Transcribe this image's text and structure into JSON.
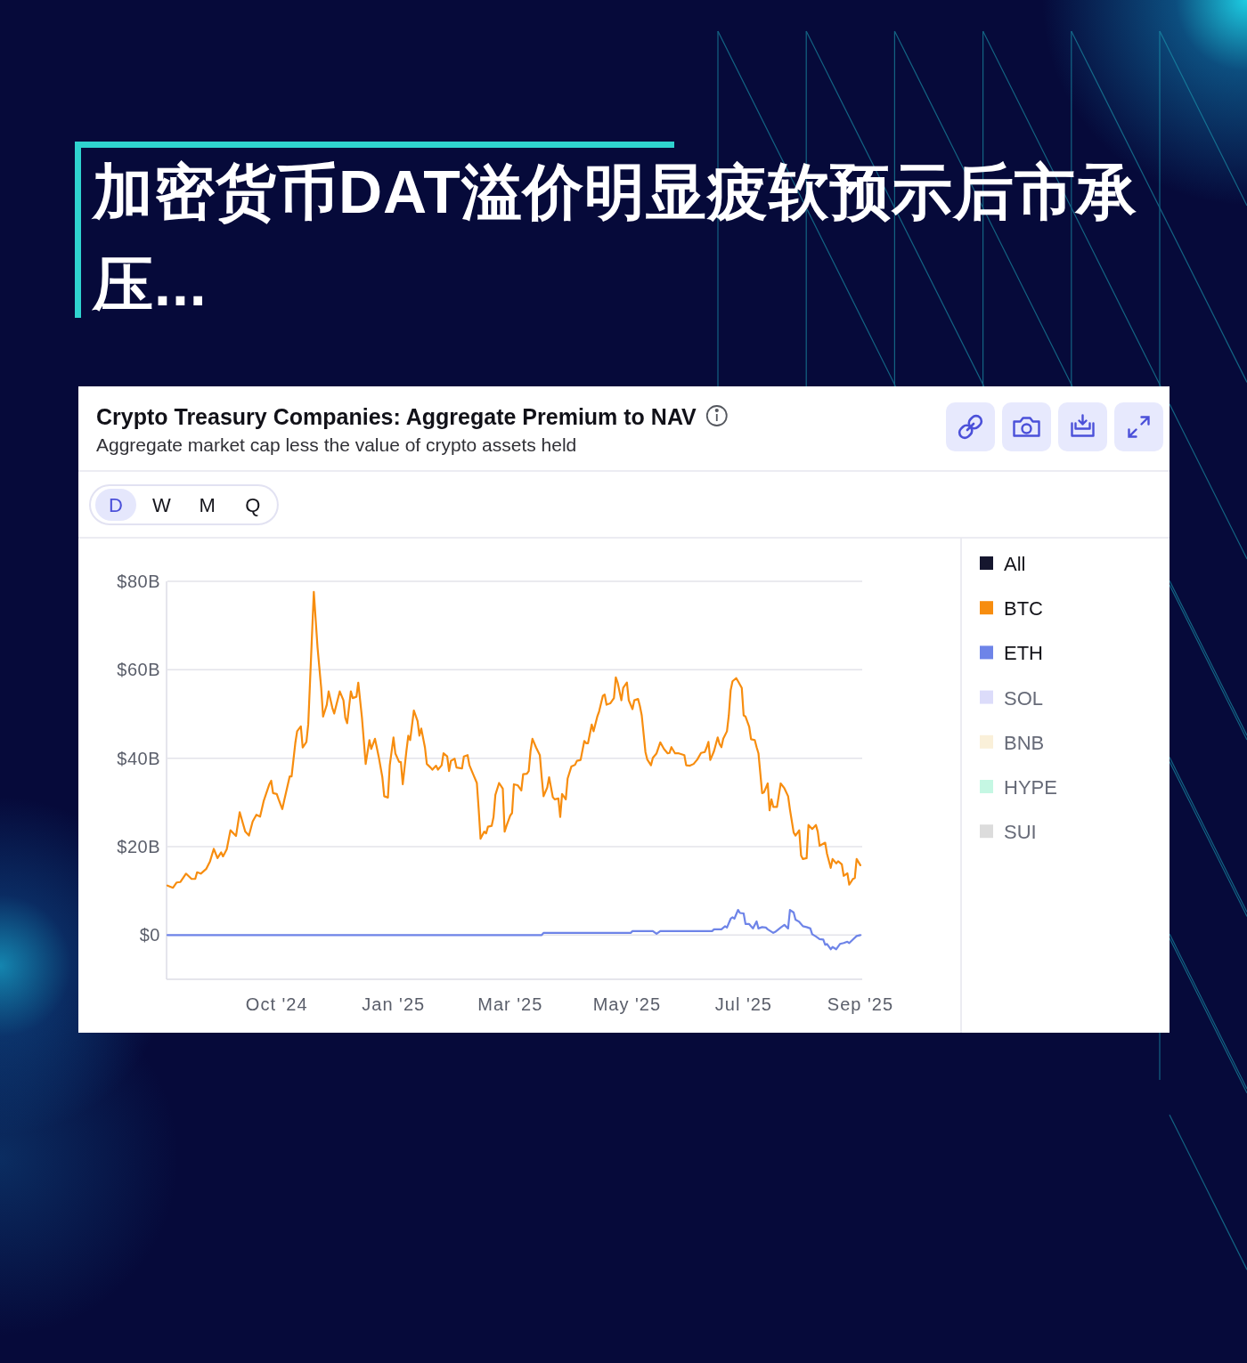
{
  "chart_data": {
    "type": "line",
    "title": "加密货币DAT溢价明显疲软预示后市承压...",
    "subtitle": "Crypto Treasury Companies: Aggregate Premium to NAV",
    "annotations": [
      "Aggregate market cap less the value of crypto assets held",
      "D",
      "W",
      "M",
      "Q"
    ],
    "x": [
      "2024-09-01",
      "2024-09-04",
      "2024-09-06",
      "2024-09-08",
      "2024-09-11",
      "2024-09-14",
      "2024-09-16",
      "2024-09-17",
      "2024-09-19",
      "2024-09-22",
      "2024-09-24",
      "2024-09-26",
      "2024-09-28",
      "2024-09-30",
      "2024-10-01",
      "2024-10-03",
      "2024-10-05",
      "2024-10-08",
      "2024-10-10",
      "2024-10-13",
      "2024-10-15",
      "2024-10-17",
      "2024-10-19",
      "2024-10-21",
      "2024-10-23",
      "2024-10-26",
      "2024-10-27",
      "2024-10-28",
      "2024-10-30",
      "2024-10-31",
      "2024-11-02",
      "2024-11-03",
      "2024-11-06",
      "2024-11-07",
      "2024-11-09",
      "2024-11-10",
      "2024-11-12",
      "2024-11-13",
      "2024-11-15",
      "2024-11-16",
      "2024-11-19",
      "2024-11-21",
      "2024-11-23",
      "2024-11-24",
      "2024-11-26",
      "2024-11-27",
      "2024-11-29",
      "2024-11-30",
      "2024-12-03",
      "2024-12-05",
      "2024-12-06",
      "2024-12-07",
      "2024-12-09",
      "2024-12-10",
      "2024-12-12",
      "2024-12-13",
      "2024-12-15",
      "2024-12-17",
      "2024-12-19",
      "2024-12-20",
      "2024-12-22",
      "2024-12-24",
      "2024-12-26",
      "2024-12-27",
      "2024-12-29",
      "2024-12-30",
      "2025-01-01",
      "2025-01-02",
      "2025-01-04",
      "2025-01-05",
      "2025-01-06",
      "2025-01-08",
      "2025-01-09",
      "2025-01-10",
      "2025-01-12",
      "2025-01-14",
      "2025-01-15",
      "2025-01-16",
      "2025-01-18",
      "2025-01-19",
      "2025-01-21",
      "2025-01-22",
      "2025-01-24",
      "2025-01-25",
      "2025-01-27",
      "2025-01-28",
      "2025-01-30",
      "2025-01-31",
      "2025-02-01",
      "2025-02-03",
      "2025-02-04",
      "2025-02-07",
      "2025-02-08",
      "2025-02-10",
      "2025-02-11",
      "2025-02-13",
      "2025-02-15",
      "2025-02-16",
      "2025-02-17",
      "2025-02-19",
      "2025-02-20",
      "2025-02-21",
      "2025-02-23",
      "2025-02-24",
      "2025-02-25",
      "2025-02-27",
      "2025-03-01",
      "2025-03-02",
      "2025-03-03",
      "2025-03-05",
      "2025-03-06",
      "2025-03-07",
      "2025-03-09",
      "2025-03-11",
      "2025-03-12",
      "2025-03-14",
      "2025-03-15",
      "2025-03-16",
      "2025-03-17",
      "2025-03-19",
      "2025-03-21",
      "2025-03-22",
      "2025-03-23",
      "2025-03-25",
      "2025-03-26",
      "2025-03-28",
      "2025-03-29",
      "2025-03-31",
      "2025-04-01",
      "2025-04-02",
      "2025-04-04",
      "2025-04-05",
      "2025-04-07",
      "2025-04-09",
      "2025-04-10",
      "2025-04-12",
      "2025-04-14",
      "2025-04-15",
      "2025-04-16",
      "2025-04-18",
      "2025-04-19",
      "2025-04-21",
      "2025-04-22",
      "2025-04-24",
      "2025-04-25",
      "2025-04-26",
      "2025-04-28",
      "2025-04-30",
      "2025-05-01",
      "2025-05-02",
      "2025-05-04",
      "2025-05-05",
      "2025-05-07",
      "2025-05-08",
      "2025-05-10",
      "2025-05-11",
      "2025-05-13",
      "2025-05-14",
      "2025-05-15",
      "2025-05-17",
      "2025-05-18",
      "2025-05-20",
      "2025-05-21",
      "2025-05-23",
      "2025-05-25",
      "2025-05-27",
      "2025-05-29",
      "2025-05-30",
      "2025-05-31",
      "2025-06-02",
      "2025-06-04",
      "2025-06-07",
      "2025-06-08",
      "2025-06-10",
      "2025-06-12",
      "2025-06-14",
      "2025-06-16",
      "2025-06-18",
      "2025-06-19",
      "2025-06-20",
      "2025-06-21",
      "2025-06-23",
      "2025-06-25",
      "2025-06-26",
      "2025-06-27",
      "2025-06-28",
      "2025-06-30",
      "2025-07-01",
      "2025-07-02",
      "2025-07-03",
      "2025-07-05",
      "2025-07-06",
      "2025-07-08",
      "2025-07-09",
      "2025-07-10",
      "2025-07-12",
      "2025-07-13",
      "2025-07-15",
      "2025-07-16",
      "2025-07-17",
      "2025-07-19",
      "2025-07-20",
      "2025-07-22",
      "2025-07-23",
      "2025-07-24",
      "2025-07-25",
      "2025-07-27",
      "2025-07-29",
      "2025-07-31",
      "2025-08-02",
      "2025-08-03",
      "2025-08-05",
      "2025-08-06",
      "2025-08-08",
      "2025-08-09",
      "2025-08-10",
      "2025-08-12",
      "2025-08-13",
      "2025-08-15",
      "2025-08-17",
      "2025-08-18",
      "2025-08-19",
      "2025-08-22",
      "2025-08-23",
      "2025-08-25",
      "2025-08-26",
      "2025-08-28",
      "2025-08-29",
      "2025-08-31",
      "2025-09-01",
      "2025-09-03",
      "2025-09-04",
      "2025-09-06",
      "2025-09-07",
      "2025-09-08",
      "2025-09-10"
    ],
    "series": [
      {
        "name": "All",
        "color": "#15162e",
        "values": [
          null,
          null,
          null,
          null,
          null,
          null,
          null,
          null,
          null,
          null,
          null,
          null,
          null,
          null,
          null,
          null,
          null,
          null,
          null,
          null,
          null,
          null,
          null,
          null,
          null,
          null,
          null,
          null,
          null,
          null,
          null,
          null,
          null,
          null,
          null,
          null,
          null,
          null,
          null,
          null,
          null,
          null,
          null,
          null,
          null,
          null,
          null,
          null,
          null,
          null,
          null,
          null,
          null,
          null,
          null,
          null,
          null,
          null,
          null,
          null,
          null,
          null,
          null,
          null,
          null,
          null,
          null,
          null,
          null,
          null,
          null,
          null,
          null,
          null,
          null,
          null,
          null,
          null,
          null,
          null,
          null,
          null,
          null,
          null,
          null,
          null,
          null,
          null,
          null,
          null,
          null,
          null,
          null,
          null,
          null,
          null,
          null,
          null,
          null,
          null,
          null,
          null,
          null,
          null,
          null,
          null,
          null,
          null,
          null,
          null,
          null,
          null,
          null,
          null,
          null,
          null,
          null,
          null,
          null,
          null,
          null,
          null,
          null,
          null,
          null,
          null,
          null,
          null,
          null,
          null,
          null,
          null,
          null,
          null,
          null,
          null,
          null,
          null,
          null,
          null,
          null,
          null,
          null,
          null,
          null,
          null,
          null,
          null,
          null,
          null,
          null,
          null,
          null,
          null,
          null,
          null,
          null,
          null,
          null,
          null,
          null,
          null,
          null,
          null,
          null,
          null,
          null,
          null,
          null,
          null,
          null,
          null,
          null,
          null,
          null,
          null,
          null,
          null,
          null,
          null,
          null,
          null,
          null,
          null,
          null,
          null,
          null,
          null,
          null,
          null,
          null,
          null,
          null,
          null,
          null,
          null,
          null,
          null,
          null,
          null,
          null,
          null,
          null,
          null,
          null,
          null,
          null,
          null,
          null,
          null,
          null,
          null,
          null,
          null,
          null,
          null,
          null,
          null,
          null,
          null,
          null,
          null,
          null,
          null,
          null,
          null,
          null,
          null,
          null,
          null,
          null,
          null,
          null,
          null,
          null,
          null
        ]
      },
      {
        "name": "BTC",
        "color": "#f78d0f",
        "values": [
          11.2,
          10.7,
          11.9,
          12.0,
          13.9,
          12.7,
          12.7,
          14.2,
          13.9,
          15.0,
          16.7,
          19.5,
          17.4,
          18.7,
          17.8,
          19.4,
          23.7,
          22.4,
          27.8,
          23.4,
          22.5,
          25.7,
          27.2,
          26.8,
          30.4,
          34.1,
          34.9,
          32.1,
          31.9,
          30.7,
          28.5,
          30.4,
          35.9,
          35.9,
          43.4,
          46.1,
          47.2,
          42.4,
          43.7,
          47.7,
          77.6,
          65.1,
          55.8,
          49.4,
          52.1,
          55.1,
          51.4,
          50.1,
          55.1,
          53.1,
          49.1,
          47.9,
          55.1,
          53.6,
          53.9,
          57.1,
          49.1,
          38.7,
          44.1,
          42.1,
          44.4,
          40.4,
          35.7,
          31.4,
          31.1,
          38.4,
          44.7,
          41.1,
          39.2,
          39.1,
          34.1,
          41.7,
          45.1,
          44.1,
          50.8,
          48.4,
          45.1,
          46.7,
          42.4,
          38.7,
          37.9,
          37.4,
          38.3,
          37.4,
          38.4,
          41.1,
          40.4,
          37.1,
          39.4,
          39.9,
          37.9,
          37.7,
          40.4,
          40.7,
          38.4,
          36.4,
          34.4,
          28.4,
          21.8,
          23.4,
          23.0,
          24.5,
          24.7,
          26.7,
          31.7,
          34.4,
          33.1,
          23.4,
          24.7,
          27.0,
          27.6,
          34.1,
          33.9,
          32.7,
          36.4,
          36.5,
          37.1,
          41.7,
          44.4,
          42.4,
          40.7,
          35.7,
          31.4,
          33.4,
          35.7,
          31.2,
          30.7,
          30.9,
          26.7,
          31.9,
          30.7,
          35.4,
          38.1,
          38.5,
          39.4,
          39.6,
          43.9,
          43.4,
          43.4,
          47.6,
          46.1,
          49.4,
          50.6,
          54.1,
          54.4,
          52.1,
          52.4,
          53.6,
          58.3,
          57.1,
          53.1,
          55.9,
          57.1,
          53.1,
          51.1,
          53.1,
          53.4,
          51.8,
          49.7,
          41.4,
          39.7,
          38.4,
          40.1,
          41.1,
          43.6,
          42.1,
          41.1,
          41.2,
          42.5,
          41.1,
          41.1,
          40.7,
          38.4,
          38.3,
          38.7,
          39.7,
          41.2,
          41.4,
          42.4,
          43.7,
          39.6,
          41.6,
          44.7,
          43.2,
          42.5,
          44.4,
          46.1,
          49.7,
          55.4,
          57.4,
          58.1,
          57.4,
          55.9,
          49.7,
          49.4,
          47.1,
          44.3,
          44.1,
          42.5,
          41.1,
          32.1,
          32.3,
          34.3,
          28.2,
          30.7,
          29.0,
          29.0,
          34.3,
          33.2,
          31.4,
          28.4,
          23.2,
          22.5,
          23.7,
          18.0,
          17.2,
          17.4,
          24.9,
          24.0,
          24.9,
          23.4,
          20.2,
          20.9,
          18.4,
          15.2,
          17.2,
          16.2,
          16.7,
          16.0,
          13.4,
          14.0,
          11.4,
          12.7,
          12.9,
          17.2,
          15.8
        ]
      },
      {
        "name": "ETH",
        "color": "#6e84e8",
        "x": [
          "2024-09-01",
          "2025-03-22",
          "2025-03-23",
          "2025-05-09",
          "2025-05-10",
          "2025-05-21",
          "2025-05-23",
          "2025-05-25",
          "2025-06-22",
          "2025-06-23",
          "2025-06-27",
          "2025-06-29",
          "2025-06-30",
          "2025-07-02",
          "2025-07-03",
          "2025-07-04",
          "2025-07-06",
          "2025-07-07",
          "2025-07-09",
          "2025-07-10",
          "2025-07-12",
          "2025-07-14",
          "2025-07-16",
          "2025-07-17",
          "2025-07-19",
          "2025-07-21",
          "2025-07-22",
          "2025-07-25",
          "2025-07-26",
          "2025-07-29",
          "2025-07-31",
          "2025-08-02",
          "2025-08-03",
          "2025-08-05",
          "2025-08-06",
          "2025-08-08",
          "2025-08-10",
          "2025-08-12",
          "2025-08-14",
          "2025-08-15",
          "2025-08-17",
          "2025-08-19",
          "2025-08-21",
          "2025-08-22",
          "2025-08-23",
          "2025-08-25",
          "2025-08-26",
          "2025-08-28",
          "2025-08-30",
          "2025-09-01",
          "2025-09-03",
          "2025-09-04",
          "2025-09-06",
          "2025-09-08",
          "2025-09-10"
        ],
        "values": [
          0,
          0,
          0.5,
          0.5,
          0.9,
          0.9,
          0.3,
          0.9,
          0.9,
          1.3,
          1.3,
          2.0,
          1.7,
          3.7,
          4.0,
          3.7,
          5.7,
          5.0,
          4.9,
          2.5,
          2.5,
          1.5,
          3.1,
          1.5,
          1.8,
          1.7,
          1.3,
          0.5,
          0.7,
          1.7,
          2.3,
          1.5,
          5.7,
          5.1,
          3.5,
          3.0,
          2.0,
          1.8,
          1.5,
          0.2,
          -0.3,
          -0.9,
          -1.0,
          -2.2,
          -2.0,
          -3.2,
          -2.7,
          -3.2,
          -2.0,
          -1.8,
          -1.5,
          -1.8,
          -1.0,
          -0.2,
          0
        ]
      },
      {
        "name": "SOL",
        "color": "#dcdcfa",
        "values": [
          null,
          null,
          null,
          null,
          null,
          null,
          null,
          null,
          null,
          null,
          null,
          null,
          null,
          null,
          null,
          null,
          null,
          null,
          null,
          null,
          null,
          null,
          null,
          null,
          null,
          null,
          null,
          null,
          null,
          null,
          null,
          null,
          null,
          null,
          null,
          null,
          null,
          null,
          null,
          null,
          null,
          null,
          null,
          null,
          null,
          null,
          null,
          null,
          null,
          null,
          null,
          null,
          null,
          null,
          null,
          null,
          null,
          null,
          null,
          null,
          null,
          null,
          null,
          null,
          null,
          null,
          null,
          null,
          null,
          null,
          null,
          null,
          null,
          null,
          null,
          null,
          null,
          null,
          null,
          null,
          null,
          null,
          null,
          null,
          null,
          null,
          null,
          null,
          null,
          null,
          null,
          null,
          null,
          null,
          null,
          null,
          null,
          null,
          null,
          null,
          null,
          null,
          null,
          null,
          null,
          null,
          null,
          null,
          null,
          null,
          null,
          null,
          null,
          null,
          null,
          null,
          null,
          null,
          null,
          null,
          null,
          null,
          null,
          null,
          null,
          null,
          null,
          null,
          null,
          null,
          null,
          null,
          null,
          null,
          null,
          null,
          null,
          null,
          null,
          null,
          null,
          null,
          null,
          null,
          null,
          null,
          null,
          null,
          null,
          null,
          null,
          null,
          null,
          null,
          null,
          null,
          null,
          null,
          null,
          null,
          null,
          null,
          null,
          null,
          null,
          null,
          null,
          null,
          null,
          null,
          null,
          null,
          null,
          null,
          null,
          null,
          null,
          null,
          null,
          null,
          null,
          null,
          null,
          null,
          null,
          null,
          null,
          null,
          null,
          null,
          null,
          null,
          null,
          null,
          null,
          null,
          null,
          null,
          null,
          null,
          null,
          null,
          null,
          null,
          null,
          null,
          null,
          null,
          null,
          null,
          null,
          null,
          null,
          null,
          null,
          null,
          null,
          null,
          null,
          null,
          null,
          null,
          null,
          null,
          null,
          null,
          null,
          null,
          null,
          null,
          null,
          null,
          null,
          null,
          null,
          null
        ]
      },
      {
        "name": "BNB",
        "color": "#faf0d9",
        "values": [
          null,
          null,
          null,
          null,
          null,
          null,
          null,
          null,
          null,
          null,
          null,
          null,
          null,
          null,
          null,
          null,
          null,
          null,
          null,
          null,
          null,
          null,
          null,
          null,
          null,
          null,
          null,
          null,
          null,
          null,
          null,
          null,
          null,
          null,
          null,
          null,
          null,
          null,
          null,
          null,
          null,
          null,
          null,
          null,
          null,
          null,
          null,
          null,
          null,
          null,
          null,
          null,
          null,
          null,
          null,
          null,
          null,
          null,
          null,
          null,
          null,
          null,
          null,
          null,
          null,
          null,
          null,
          null,
          null,
          null,
          null,
          null,
          null,
          null,
          null,
          null,
          null,
          null,
          null,
          null,
          null,
          null,
          null,
          null,
          null,
          null,
          null,
          null,
          null,
          null,
          null,
          null,
          null,
          null,
          null,
          null,
          null,
          null,
          null,
          null,
          null,
          null,
          null,
          null,
          null,
          null,
          null,
          null,
          null,
          null,
          null,
          null,
          null,
          null,
          null,
          null,
          null,
          null,
          null,
          null,
          null,
          null,
          null,
          null,
          null,
          null,
          null,
          null,
          null,
          null,
          null,
          null,
          null,
          null,
          null,
          null,
          null,
          null,
          null,
          null,
          null,
          null,
          null,
          null,
          null,
          null,
          null,
          null,
          null,
          null,
          null,
          null,
          null,
          null,
          null,
          null,
          null,
          null,
          null,
          null,
          null,
          null,
          null,
          null,
          null,
          null,
          null,
          null,
          null,
          null,
          null,
          null,
          null,
          null,
          null,
          null,
          null,
          null,
          null,
          null,
          null,
          null,
          null,
          null,
          null,
          null,
          null,
          null,
          null,
          null,
          null,
          null,
          null,
          null,
          null,
          null,
          null,
          null,
          null,
          null,
          null,
          null,
          null,
          null,
          null,
          null,
          null,
          null,
          null,
          null,
          null,
          null,
          null,
          null,
          null,
          null,
          null,
          null,
          null,
          null,
          null,
          null,
          null,
          null,
          null,
          null,
          null,
          null,
          null,
          null,
          null,
          null,
          null,
          null,
          null,
          null
        ]
      },
      {
        "name": "HYPE",
        "color": "#c5f7e3",
        "values": [
          null,
          null,
          null,
          null,
          null,
          null,
          null,
          null,
          null,
          null,
          null,
          null,
          null,
          null,
          null,
          null,
          null,
          null,
          null,
          null,
          null,
          null,
          null,
          null,
          null,
          null,
          null,
          null,
          null,
          null,
          null,
          null,
          null,
          null,
          null,
          null,
          null,
          null,
          null,
          null,
          null,
          null,
          null,
          null,
          null,
          null,
          null,
          null,
          null,
          null,
          null,
          null,
          null,
          null,
          null,
          null,
          null,
          null,
          null,
          null,
          null,
          null,
          null,
          null,
          null,
          null,
          null,
          null,
          null,
          null,
          null,
          null,
          null,
          null,
          null,
          null,
          null,
          null,
          null,
          null,
          null,
          null,
          null,
          null,
          null,
          null,
          null,
          null,
          null,
          null,
          null,
          null,
          null,
          null,
          null,
          null,
          null,
          null,
          null,
          null,
          null,
          null,
          null,
          null,
          null,
          null,
          null,
          null,
          null,
          null,
          null,
          null,
          null,
          null,
          null,
          null,
          null,
          null,
          null,
          null,
          null,
          null,
          null,
          null,
          null,
          null,
          null,
          null,
          null,
          null,
          null,
          null,
          null,
          null,
          null,
          null,
          null,
          null,
          null,
          null,
          null,
          null,
          null,
          null,
          null,
          null,
          null,
          null,
          null,
          null,
          null,
          null,
          null,
          null,
          null,
          null,
          null,
          null,
          null,
          null,
          null,
          null,
          null,
          null,
          null,
          null,
          null,
          null,
          null,
          null,
          null,
          null,
          null,
          null,
          null,
          null,
          null,
          null,
          null,
          null,
          null,
          null,
          null,
          null,
          null,
          null,
          null,
          null,
          null,
          null,
          null,
          null,
          null,
          null,
          null,
          null,
          null,
          null,
          null,
          null,
          null,
          null,
          null,
          null,
          null,
          null,
          null,
          null,
          null,
          null,
          null,
          null,
          null,
          null,
          null,
          null,
          null,
          null,
          null,
          null,
          null,
          null,
          null,
          null,
          null,
          null,
          null,
          null,
          null,
          null,
          null,
          null,
          null,
          null,
          null,
          null
        ]
      },
      {
        "name": "SUI",
        "color": "#dcdcdc",
        "values": [
          null,
          null,
          null,
          null,
          null,
          null,
          null,
          null,
          null,
          null,
          null,
          null,
          null,
          null,
          null,
          null,
          null,
          null,
          null,
          null,
          null,
          null,
          null,
          null,
          null,
          null,
          null,
          null,
          null,
          null,
          null,
          null,
          null,
          null,
          null,
          null,
          null,
          null,
          null,
          null,
          null,
          null,
          null,
          null,
          null,
          null,
          null,
          null,
          null,
          null,
          null,
          null,
          null,
          null,
          null,
          null,
          null,
          null,
          null,
          null,
          null,
          null,
          null,
          null,
          null,
          null,
          null,
          null,
          null,
          null,
          null,
          null,
          null,
          null,
          null,
          null,
          null,
          null,
          null,
          null,
          null,
          null,
          null,
          null,
          null,
          null,
          null,
          null,
          null,
          null,
          null,
          null,
          null,
          null,
          null,
          null,
          null,
          null,
          null,
          null,
          null,
          null,
          null,
          null,
          null,
          null,
          null,
          null,
          null,
          null,
          null,
          null,
          null,
          null,
          null,
          null,
          null,
          null,
          null,
          null,
          null,
          null,
          null,
          null,
          null,
          null,
          null,
          null,
          null,
          null,
          null,
          null,
          null,
          null,
          null,
          null,
          null,
          null,
          null,
          null,
          null,
          null,
          null,
          null,
          null,
          null,
          null,
          null,
          null,
          null,
          null,
          null,
          null,
          null,
          null,
          null,
          null,
          null,
          null,
          null,
          null,
          null,
          null,
          null,
          null,
          null,
          null,
          null,
          null,
          null,
          null,
          null,
          null,
          null,
          null,
          null,
          null,
          null,
          null,
          null,
          null,
          null,
          null,
          null,
          null,
          null,
          null,
          null,
          null,
          null,
          null,
          null,
          null,
          null,
          null,
          null,
          null,
          null,
          null,
          null,
          null,
          null,
          null,
          null,
          null,
          null,
          null,
          null,
          null,
          null,
          null,
          null,
          null,
          null,
          null,
          null,
          null,
          null,
          null,
          null,
          null,
          null,
          null,
          null,
          null,
          null,
          null,
          null,
          null,
          null,
          null,
          null,
          null,
          null,
          null,
          null
        ]
      }
    ],
    "xlim": [
      "2024-09-01",
      "2025-09-11"
    ],
    "xticks": [
      {
        "value": "2024-10-30",
        "label": "Oct '24"
      },
      {
        "value": "2025-01-01",
        "label": "Jan '25"
      },
      {
        "value": "2025-03-05",
        "label": "Mar '25"
      },
      {
        "value": "2025-05-07",
        "label": "May '25"
      },
      {
        "value": "2025-07-09",
        "label": "Jul '25"
      },
      {
        "value": "2025-09-10",
        "label": "Sep '25"
      }
    ],
    "ylim": [
      -10,
      80
    ],
    "yticks": [
      {
        "value": 0,
        "label": "$0"
      },
      {
        "value": 20,
        "label": "$20B"
      },
      {
        "value": 40,
        "label": "$40B"
      },
      {
        "value": 60,
        "label": "$60B"
      },
      {
        "value": 80,
        "label": "$80B"
      }
    ],
    "grid": "y",
    "legend": "right"
  }
}
